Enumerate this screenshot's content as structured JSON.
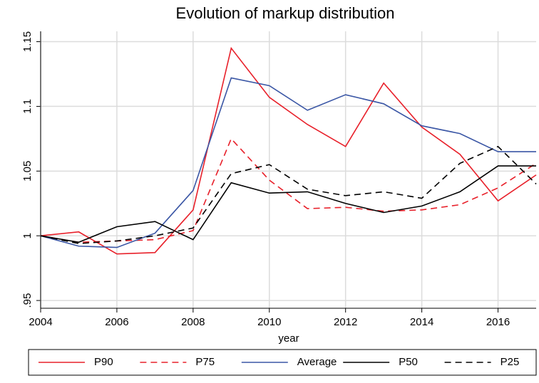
{
  "chart_data": {
    "type": "line",
    "title": "Evolution of markup distribution",
    "x_label": "year",
    "x": [
      2004,
      2005,
      2006,
      2007,
      2008,
      2009,
      2010,
      2011,
      2012,
      2013,
      2014,
      2015,
      2016,
      2017
    ],
    "series": [
      {
        "name": "P90",
        "color": "#e8202a",
        "dash": false,
        "values": [
          1.0,
          1.003,
          0.986,
          0.987,
          1.02,
          1.145,
          1.107,
          1.086,
          1.069,
          1.118,
          1.084,
          1.063,
          1.027,
          1.047
        ]
      },
      {
        "name": "P75",
        "color": "#e8202a",
        "dash": true,
        "values": [
          1.0,
          0.995,
          0.996,
          0.997,
          1.004,
          1.075,
          1.043,
          1.021,
          1.022,
          1.019,
          1.02,
          1.024,
          1.037,
          1.056
        ]
      },
      {
        "name": "Average",
        "color": "#3a56a5",
        "dash": false,
        "values": [
          1.0,
          0.992,
          0.991,
          1.002,
          1.035,
          1.122,
          1.116,
          1.097,
          1.109,
          1.102,
          1.085,
          1.079,
          1.065,
          1.065
        ]
      },
      {
        "name": "P50",
        "color": "#000000",
        "dash": false,
        "values": [
          1.0,
          0.995,
          1.007,
          1.011,
          0.997,
          1.041,
          1.033,
          1.034,
          1.025,
          1.018,
          1.023,
          1.034,
          1.054,
          1.054
        ]
      },
      {
        "name": "P25",
        "color": "#000000",
        "dash": true,
        "values": [
          1.0,
          0.994,
          0.996,
          1.0,
          1.006,
          1.048,
          1.055,
          1.036,
          1.031,
          1.034,
          1.029,
          1.056,
          1.069,
          1.04
        ]
      }
    ],
    "xlim": [
      2004,
      2017
    ],
    "xticks": [
      2004,
      2006,
      2008,
      2010,
      2012,
      2014,
      2016
    ],
    "ylim": [
      0.944,
      1.158
    ],
    "yticks": [
      {
        "value": 0.95,
        "label": ".95"
      },
      1,
      1.05,
      1.1,
      1.15
    ],
    "grid": true,
    "legend": "bottom"
  }
}
